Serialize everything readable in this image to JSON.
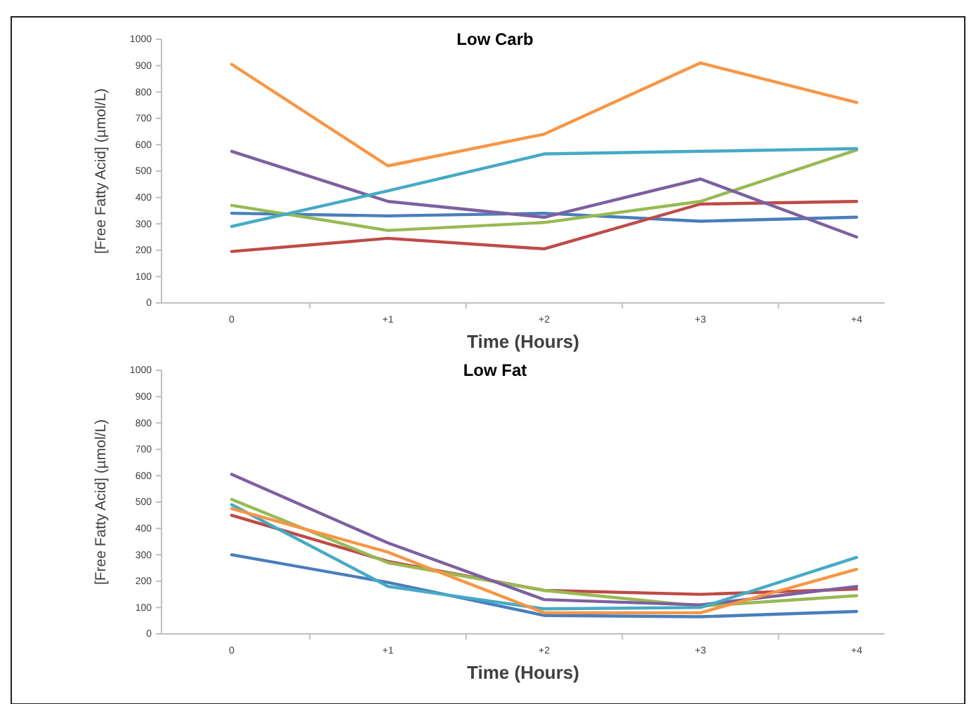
{
  "chart_data": [
    {
      "type": "line",
      "title": "Low Carb",
      "xlabel": "Time (Hours)",
      "ylabel": "[Free Fatty Acid] (µmol/L)",
      "categories": [
        "0",
        "+1",
        "+2",
        "+3",
        "+4"
      ],
      "ylim": [
        0,
        1000
      ],
      "yticks": [
        0,
        100,
        200,
        300,
        400,
        500,
        600,
        700,
        800,
        900,
        1000
      ],
      "grid": false,
      "marker": "none",
      "line_style": "solid",
      "series": [
        {
          "color": "#4a7ebb",
          "values": [
            340,
            330,
            340,
            310,
            325
          ]
        },
        {
          "color": "#be4b48",
          "values": [
            195,
            245,
            205,
            375,
            385
          ]
        },
        {
          "color": "#98b954",
          "values": [
            370,
            275,
            305,
            385,
            580
          ]
        },
        {
          "color": "#7d60a0",
          "values": [
            575,
            385,
            325,
            470,
            250
          ]
        },
        {
          "color": "#46aac5",
          "values": [
            290,
            425,
            565,
            575,
            585
          ]
        },
        {
          "color": "#f79646",
          "values": [
            905,
            520,
            640,
            910,
            760
          ]
        }
      ]
    },
    {
      "type": "line",
      "title": "Low Fat",
      "xlabel": "Time (Hours)",
      "ylabel": "[Free Fatty Acid] (µmol/L)",
      "categories": [
        "0",
        "+1",
        "+2",
        "+3",
        "+4"
      ],
      "ylim": [
        0,
        1000
      ],
      "yticks": [
        0,
        100,
        200,
        300,
        400,
        500,
        600,
        700,
        800,
        900,
        1000
      ],
      "grid": false,
      "marker": "none",
      "line_style": "solid",
      "series": [
        {
          "color": "#4a7ebb",
          "values": [
            300,
            195,
            70,
            65,
            85
          ]
        },
        {
          "color": "#be4b48",
          "values": [
            450,
            275,
            165,
            150,
            170
          ]
        },
        {
          "color": "#98b954",
          "values": [
            510,
            270,
            165,
            105,
            145
          ]
        },
        {
          "color": "#7d60a0",
          "values": [
            605,
            345,
            130,
            110,
            180
          ]
        },
        {
          "color": "#46aac5",
          "values": [
            490,
            180,
            95,
            100,
            290
          ]
        },
        {
          "color": "#f79646",
          "values": [
            475,
            310,
            80,
            80,
            245
          ]
        }
      ]
    }
  ]
}
